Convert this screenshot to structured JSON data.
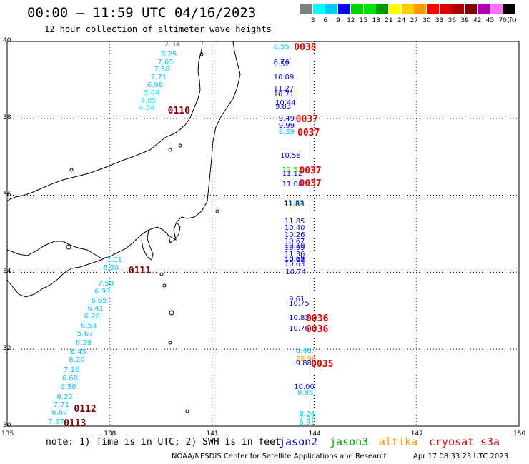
{
  "title": "00:00 – 11:59 UTC 04/16/2023",
  "subtitle": "12 hour collection of altimeter wave heights",
  "note": "note: 1) Time is in UTC; 2) SWH is in feet",
  "credit": "NOAA/NESDIS Center for Satellite Applications and Research",
  "timestamp": "Apr 17 08:33:23 UTC 2023",
  "satellites": [
    {
      "name": "jason2",
      "color": "#0000dd"
    },
    {
      "name": "jason3",
      "color": "#00a000"
    },
    {
      "name": "altika",
      "color": "#ff9900"
    },
    {
      "name": "cryosat",
      "color": "#ee0000"
    },
    {
      "name": "s3a",
      "color": "#cc0000"
    }
  ],
  "scale": {
    "unit": "(ft)",
    "labels": [
      "3",
      "6",
      "9",
      "12",
      "15",
      "18",
      "21",
      "24",
      "27",
      "30",
      "33",
      "36",
      "39",
      "42",
      "45",
      "70"
    ],
    "colors": [
      "#808080",
      "#00ffff",
      "#00c8ff",
      "#0000ff",
      "#00d000",
      "#00e800",
      "#009800",
      "#ffff00",
      "#ffd000",
      "#ff9900",
      "#ff0000",
      "#dd0000",
      "#b00000",
      "#800000",
      "#b000b0",
      "#ff70ff",
      "#000000"
    ]
  },
  "map": {
    "lon_range": [
      135,
      150
    ],
    "lat_range": [
      30,
      40
    ],
    "lon_ticks": [
      "135",
      "138",
      "141",
      "144",
      "147",
      "150"
    ],
    "lat_ticks": [
      "40",
      "38",
      "36",
      "34",
      "32",
      "30"
    ]
  },
  "chart_data": {
    "type": "scatter",
    "tracks": [
      {
        "name": "track-west-north",
        "points": [
          {
            "lon": 139.9,
            "lat": 39.9,
            "v": "2.34",
            "c": "#808080"
          },
          {
            "lon": 139.8,
            "lat": 39.65,
            "v": "8.25",
            "c": "#00c8ff"
          },
          {
            "lon": 139.7,
            "lat": 39.45,
            "v": "7.65",
            "c": "#00c8ff"
          },
          {
            "lon": 139.6,
            "lat": 39.25,
            "v": "7.58",
            "c": "#00c8ff"
          },
          {
            "lon": 139.5,
            "lat": 39.05,
            "v": "7.71",
            "c": "#00c8ff"
          },
          {
            "lon": 139.4,
            "lat": 38.85,
            "v": "6.98",
            "c": "#00c8ff"
          },
          {
            "lon": 139.3,
            "lat": 38.65,
            "v": "5.04",
            "c": "#00ffff"
          },
          {
            "lon": 139.2,
            "lat": 38.45,
            "v": "4.05",
            "c": "#00ffff"
          },
          {
            "lon": 139.15,
            "lat": 38.25,
            "v": "4.34",
            "c": "#00ffff"
          }
        ],
        "times": [
          {
            "lon": 140.0,
            "lat": 38.2,
            "t": "0110",
            "c": "#800000"
          }
        ]
      },
      {
        "name": "track-east-upper",
        "points": [
          {
            "lon": 143.1,
            "lat": 39.85,
            "v": "8.55",
            "c": "#00c8ff"
          },
          {
            "lon": 143.1,
            "lat": 39.45,
            "v": "8.76",
            "c": "#0000ff"
          },
          {
            "lon": 143.1,
            "lat": 39.38,
            "v": "9.52",
            "c": "#0000ff"
          },
          {
            "lon": 143.1,
            "lat": 39.05,
            "v": "10.09",
            "c": "#0000ff"
          },
          {
            "lon": 143.1,
            "lat": 38.75,
            "v": "11.27",
            "c": "#0000ff"
          },
          {
            "lon": 143.1,
            "lat": 38.6,
            "v": "10.71",
            "c": "#0000ff"
          },
          {
            "lon": 143.15,
            "lat": 38.38,
            "v": "10.44",
            "c": "#0000ff"
          },
          {
            "lon": 143.15,
            "lat": 38.3,
            "v": "9.83",
            "c": "#0000ff"
          },
          {
            "lon": 143.25,
            "lat": 37.98,
            "v": "9.49",
            "c": "#0000ff"
          },
          {
            "lon": 143.25,
            "lat": 37.8,
            "v": "9.99",
            "c": "#0000ff"
          },
          {
            "lon": 143.25,
            "lat": 37.63,
            "v": "8.59",
            "c": "#00c8ff"
          },
          {
            "lon": 143.3,
            "lat": 37.02,
            "v": "10.58",
            "c": "#0000ff"
          },
          {
            "lon": 143.35,
            "lat": 36.65,
            "v": "12.52",
            "c": "#00e800"
          },
          {
            "lon": 143.35,
            "lat": 36.55,
            "v": "11.12",
            "c": "#0000ff"
          },
          {
            "lon": 143.35,
            "lat": 36.28,
            "v": "11.08",
            "c": "#0000ff"
          },
          {
            "lon": 143.4,
            "lat": 35.78,
            "v": "11.83",
            "c": "#00d000"
          },
          {
            "lon": 143.4,
            "lat": 35.75,
            "v": "11.83",
            "c": "#0000ff"
          },
          {
            "lon": 143.42,
            "lat": 35.3,
            "v": "11.85",
            "c": "#0000ff"
          },
          {
            "lon": 143.42,
            "lat": 35.13,
            "v": "10.40",
            "c": "#0000ff"
          },
          {
            "lon": 143.42,
            "lat": 34.95,
            "v": "10.26",
            "c": "#0000ff"
          },
          {
            "lon": 143.42,
            "lat": 34.78,
            "v": "10.67",
            "c": "#0000ff"
          },
          {
            "lon": 143.42,
            "lat": 34.68,
            "v": "10.10",
            "c": "#0000ff"
          },
          {
            "lon": 143.42,
            "lat": 34.62,
            "v": "10.99",
            "c": "#0000ff"
          },
          {
            "lon": 143.42,
            "lat": 34.45,
            "v": "11.36",
            "c": "#0000ff"
          },
          {
            "lon": 143.42,
            "lat": 34.35,
            "v": "10.69",
            "c": "#0000ff"
          },
          {
            "lon": 143.42,
            "lat": 34.3,
            "v": "10.68",
            "c": "#0000ff"
          },
          {
            "lon": 143.42,
            "lat": 34.2,
            "v": "10.63",
            "c": "#0000ff"
          },
          {
            "lon": 143.45,
            "lat": 33.98,
            "v": "10.74",
            "c": "#0000ff"
          }
        ],
        "times": [
          {
            "lon": 143.7,
            "lat": 39.85,
            "t": "0038",
            "c": "#ee0000"
          },
          {
            "lon": 143.75,
            "lat": 37.97,
            "t": "0037",
            "c": "#ee0000"
          },
          {
            "lon": 143.8,
            "lat": 37.62,
            "t": "0037",
            "c": "#ee0000"
          },
          {
            "lon": 143.85,
            "lat": 36.65,
            "t": "0037",
            "c": "#ee0000"
          },
          {
            "lon": 143.85,
            "lat": 36.3,
            "t": "0037",
            "c": "#ee0000"
          }
        ]
      },
      {
        "name": "track-east-lower",
        "points": [
          {
            "lon": 143.55,
            "lat": 33.28,
            "v": "9.61",
            "c": "#0000ff"
          },
          {
            "lon": 143.55,
            "lat": 33.18,
            "v": "10.75",
            "c": "#0000ff"
          },
          {
            "lon": 143.55,
            "lat": 32.8,
            "v": "10.83",
            "c": "#0000ff"
          },
          {
            "lon": 143.55,
            "lat": 32.52,
            "v": "10.76",
            "c": "#0000ff"
          },
          {
            "lon": 143.75,
            "lat": 31.95,
            "v": "6.48",
            "c": "#00c8ff"
          },
          {
            "lon": 143.75,
            "lat": 31.72,
            "v": "28.96",
            "c": "#ff9900"
          },
          {
            "lon": 143.75,
            "lat": 31.62,
            "v": "9.88",
            "c": "#0000ff"
          },
          {
            "lon": 143.7,
            "lat": 31.0,
            "v": "10.00",
            "c": "#0000ff"
          },
          {
            "lon": 143.8,
            "lat": 30.85,
            "v": "8.88",
            "c": "#00c8ff"
          },
          {
            "lon": 143.85,
            "lat": 30.3,
            "v": "8.04",
            "c": "#00c8ff"
          },
          {
            "lon": 143.85,
            "lat": 30.2,
            "v": "7.57",
            "c": "#00c8ff"
          },
          {
            "lon": 143.85,
            "lat": 30.08,
            "v": "6.91",
            "c": "#00c8ff"
          }
        ],
        "times": [
          {
            "lon": 144.05,
            "lat": 32.8,
            "t": "0036",
            "c": "#ee0000"
          },
          {
            "lon": 144.05,
            "lat": 32.52,
            "t": "0036",
            "c": "#ee0000"
          },
          {
            "lon": 144.2,
            "lat": 31.62,
            "t": "0035",
            "c": "#ee0000"
          }
        ]
      },
      {
        "name": "track-west-south",
        "points": [
          {
            "lon": 138.2,
            "lat": 34.3,
            "v": "7.01",
            "c": "#00c8ff"
          },
          {
            "lon": 138.1,
            "lat": 34.1,
            "v": "6.50",
            "c": "#00c8ff"
          },
          {
            "lon": 137.95,
            "lat": 33.7,
            "v": "7.50",
            "c": "#00c8ff"
          },
          {
            "lon": 137.85,
            "lat": 33.48,
            "v": "6.90",
            "c": "#00c8ff"
          },
          {
            "lon": 137.75,
            "lat": 33.25,
            "v": "6.65",
            "c": "#00c8ff"
          },
          {
            "lon": 137.65,
            "lat": 33.05,
            "v": "6.41",
            "c": "#00c8ff"
          },
          {
            "lon": 137.55,
            "lat": 32.83,
            "v": "6.28",
            "c": "#00c8ff"
          },
          {
            "lon": 137.45,
            "lat": 32.6,
            "v": "6.53",
            "c": "#00c8ff"
          },
          {
            "lon": 137.35,
            "lat": 32.4,
            "v": "5.67",
            "c": "#00c8ff"
          },
          {
            "lon": 137.3,
            "lat": 32.15,
            "v": "6.29",
            "c": "#00c8ff"
          },
          {
            "lon": 137.15,
            "lat": 31.92,
            "v": "6.45",
            "c": "#00c8ff"
          },
          {
            "lon": 137.1,
            "lat": 31.7,
            "v": "8.20",
            "c": "#00c8ff"
          },
          {
            "lon": 136.95,
            "lat": 31.45,
            "v": "7.16",
            "c": "#00c8ff"
          },
          {
            "lon": 136.9,
            "lat": 31.22,
            "v": "6.68",
            "c": "#00c8ff"
          },
          {
            "lon": 136.85,
            "lat": 31.0,
            "v": "6.58",
            "c": "#00c8ff"
          },
          {
            "lon": 136.75,
            "lat": 30.75,
            "v": "6.22",
            "c": "#00c8ff"
          },
          {
            "lon": 136.65,
            "lat": 30.53,
            "v": "7.71",
            "c": "#00c8ff"
          },
          {
            "lon": 136.6,
            "lat": 30.33,
            "v": "6.67",
            "c": "#00c8ff"
          },
          {
            "lon": 136.5,
            "lat": 30.1,
            "v": "7.67",
            "c": "#00c8ff"
          }
        ],
        "times": [
          {
            "lon": 138.85,
            "lat": 34.05,
            "t": "0111",
            "c": "#800000"
          },
          {
            "lon": 137.25,
            "lat": 30.45,
            "t": "0112",
            "c": "#800000"
          },
          {
            "lon": 136.95,
            "lat": 30.08,
            "t": "0113",
            "c": "#800000"
          }
        ]
      }
    ]
  }
}
